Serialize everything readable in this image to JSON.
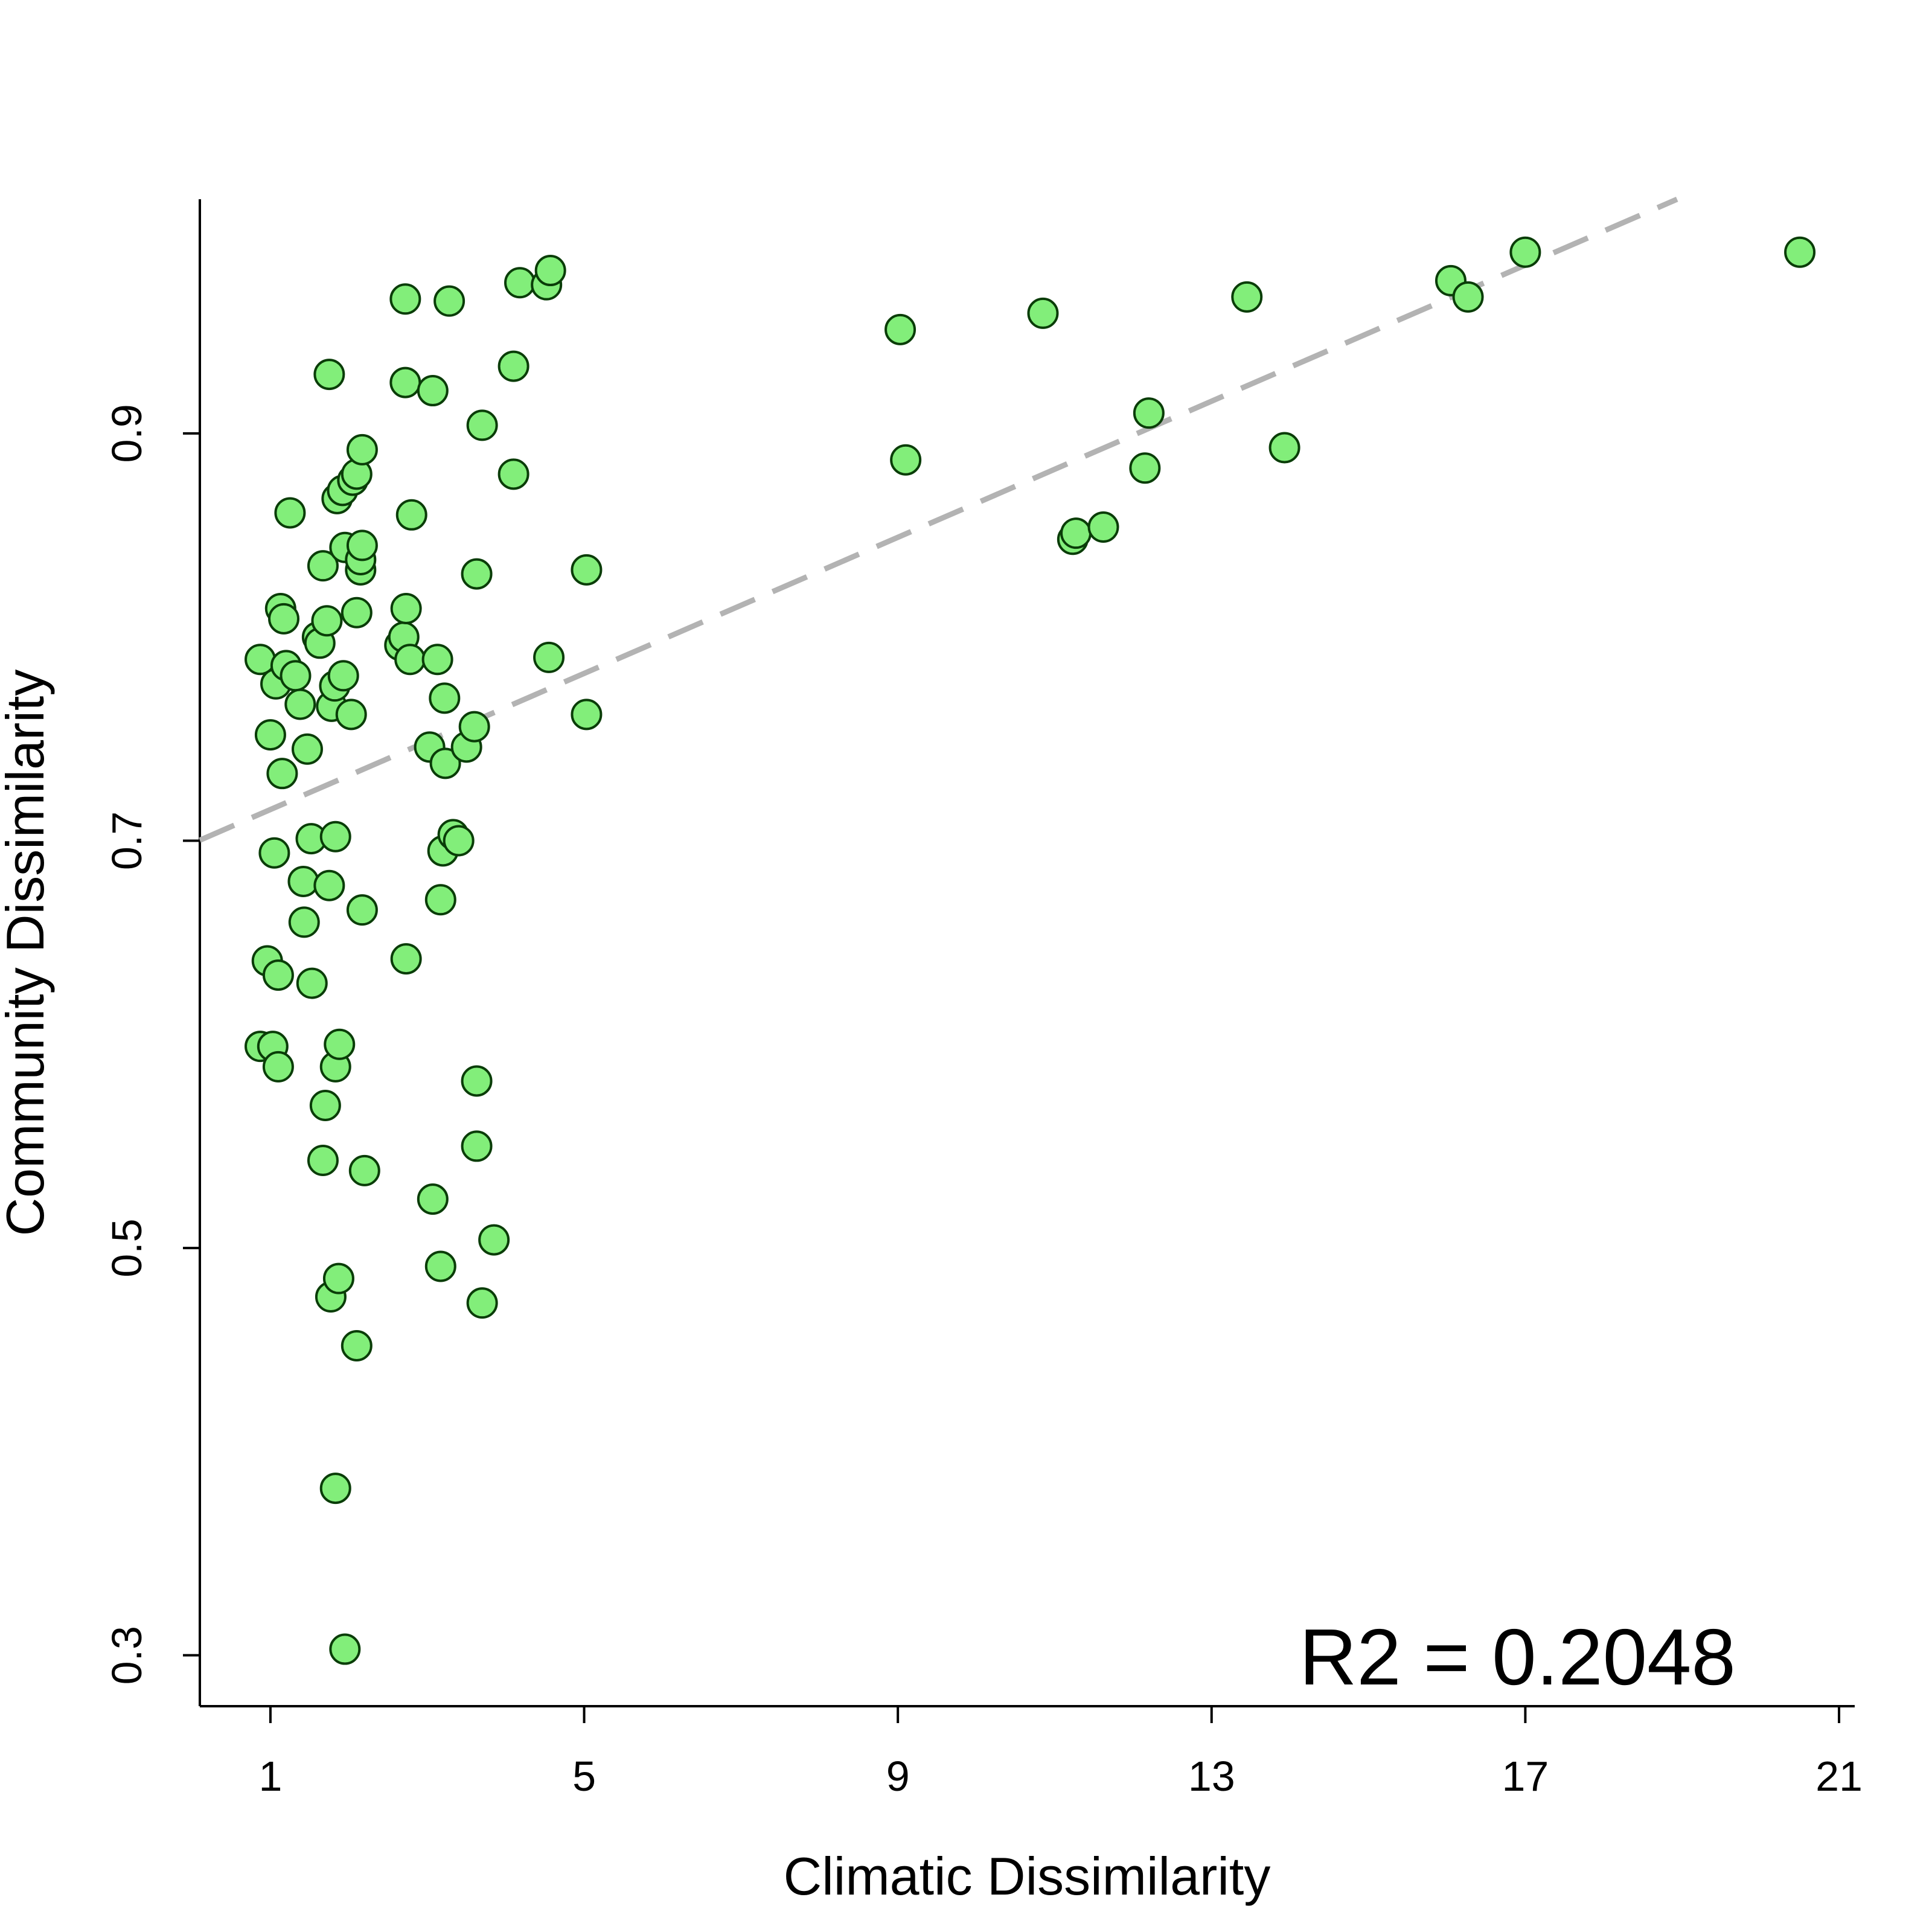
{
  "chart_data": {
    "type": "scatter",
    "title": "",
    "xlabel": "Climatic Dissimilarity",
    "ylabel": "Community Dissimilarity",
    "xlim": [
      0.1,
      21.2
    ],
    "ylim": [
      0.275,
      1.015
    ],
    "xticks": [
      1,
      5,
      9,
      13,
      17,
      21
    ],
    "yticks": [
      0.3,
      0.5,
      0.7,
      0.9
    ],
    "xtick_labels": [
      "1",
      "5",
      "9",
      "13",
      "17",
      "21"
    ],
    "ytick_labels": [
      "0.3",
      "0.5",
      "0.7",
      "0.9"
    ],
    "grid": false,
    "legend": "none",
    "annotation": "R2 = 0.2048",
    "marker_fill": "#82ee7a",
    "marker_edge": "#0a3d08",
    "fit_line_color": "#b3b3b3",
    "fit_line": {
      "intercept": 0.6986,
      "slope": 0.01671,
      "style": "dashed"
    },
    "points": [
      {
        "x": 0.87,
        "y": 0.789
      },
      {
        "x": 0.87,
        "y": 0.599
      },
      {
        "x": 0.96,
        "y": 0.641
      },
      {
        "x": 1.0,
        "y": 0.752
      },
      {
        "x": 1.03,
        "y": 0.599
      },
      {
        "x": 1.05,
        "y": 0.694
      },
      {
        "x": 1.07,
        "y": 0.777
      },
      {
        "x": 1.1,
        "y": 0.634
      },
      {
        "x": 1.1,
        "y": 0.589
      },
      {
        "x": 1.13,
        "y": 0.814
      },
      {
        "x": 1.15,
        "y": 0.733
      },
      {
        "x": 1.17,
        "y": 0.809
      },
      {
        "x": 1.2,
        "y": 0.786
      },
      {
        "x": 1.25,
        "y": 0.861
      },
      {
        "x": 1.32,
        "y": 0.781
      },
      {
        "x": 1.38,
        "y": 0.767
      },
      {
        "x": 1.42,
        "y": 0.68
      },
      {
        "x": 1.43,
        "y": 0.66
      },
      {
        "x": 1.47,
        "y": 0.745
      },
      {
        "x": 1.52,
        "y": 0.701
      },
      {
        "x": 1.53,
        "y": 0.63
      },
      {
        "x": 1.6,
        "y": 0.8
      },
      {
        "x": 1.63,
        "y": 0.797
      },
      {
        "x": 1.67,
        "y": 0.835
      },
      {
        "x": 1.67,
        "y": 0.543
      },
      {
        "x": 1.7,
        "y": 0.57
      },
      {
        "x": 1.72,
        "y": 0.808
      },
      {
        "x": 1.75,
        "y": 0.929
      },
      {
        "x": 1.75,
        "y": 0.678
      },
      {
        "x": 1.77,
        "y": 0.476
      },
      {
        "x": 1.78,
        "y": 0.766
      },
      {
        "x": 1.82,
        "y": 0.776
      },
      {
        "x": 1.83,
        "y": 0.589
      },
      {
        "x": 1.83,
        "y": 0.702
      },
      {
        "x": 1.83,
        "y": 0.382
      },
      {
        "x": 1.85,
        "y": 0.868
      },
      {
        "x": 1.87,
        "y": 0.485
      },
      {
        "x": 1.88,
        "y": 0.6
      },
      {
        "x": 1.92,
        "y": 0.872
      },
      {
        "x": 1.93,
        "y": 0.781
      },
      {
        "x": 1.95,
        "y": 0.844
      },
      {
        "x": 1.95,
        "y": 0.303
      },
      {
        "x": 2.03,
        "y": 0.762
      },
      {
        "x": 2.05,
        "y": 0.877
      },
      {
        "x": 2.1,
        "y": 0.88
      },
      {
        "x": 2.1,
        "y": 0.812
      },
      {
        "x": 2.1,
        "y": 0.452
      },
      {
        "x": 2.15,
        "y": 0.833
      },
      {
        "x": 2.15,
        "y": 0.838
      },
      {
        "x": 2.17,
        "y": 0.892
      },
      {
        "x": 2.17,
        "y": 0.845
      },
      {
        "x": 2.17,
        "y": 0.666
      },
      {
        "x": 2.2,
        "y": 0.538
      },
      {
        "x": 2.65,
        "y": 0.796
      },
      {
        "x": 2.7,
        "y": 0.8
      },
      {
        "x": 2.72,
        "y": 0.925
      },
      {
        "x": 2.72,
        "y": 0.966
      },
      {
        "x": 2.73,
        "y": 0.814
      },
      {
        "x": 2.73,
        "y": 0.642
      },
      {
        "x": 2.78,
        "y": 0.789
      },
      {
        "x": 2.8,
        "y": 0.86
      },
      {
        "x": 3.03,
        "y": 0.746
      },
      {
        "x": 3.07,
        "y": 0.921
      },
      {
        "x": 3.07,
        "y": 0.524
      },
      {
        "x": 3.13,
        "y": 0.789
      },
      {
        "x": 3.17,
        "y": 0.671
      },
      {
        "x": 3.17,
        "y": 0.491
      },
      {
        "x": 3.2,
        "y": 0.695
      },
      {
        "x": 3.22,
        "y": 0.77
      },
      {
        "x": 3.23,
        "y": 0.738
      },
      {
        "x": 3.28,
        "y": 0.965
      },
      {
        "x": 3.33,
        "y": 0.703
      },
      {
        "x": 3.4,
        "y": 0.7
      },
      {
        "x": 3.5,
        "y": 0.746
      },
      {
        "x": 3.6,
        "y": 0.756
      },
      {
        "x": 3.63,
        "y": 0.831
      },
      {
        "x": 3.63,
        "y": 0.582
      },
      {
        "x": 3.63,
        "y": 0.55
      },
      {
        "x": 3.7,
        "y": 0.904
      },
      {
        "x": 3.7,
        "y": 0.473
      },
      {
        "x": 3.85,
        "y": 0.504
      },
      {
        "x": 4.1,
        "y": 0.933
      },
      {
        "x": 4.1,
        "y": 0.88
      },
      {
        "x": 4.18,
        "y": 0.974
      },
      {
        "x": 4.52,
        "y": 0.973
      },
      {
        "x": 4.55,
        "y": 0.79
      },
      {
        "x": 4.57,
        "y": 0.98
      },
      {
        "x": 5.03,
        "y": 0.833
      },
      {
        "x": 5.03,
        "y": 0.762
      },
      {
        "x": 9.03,
        "y": 0.951
      },
      {
        "x": 9.1,
        "y": 0.887
      },
      {
        "x": 10.85,
        "y": 0.959
      },
      {
        "x": 11.23,
        "y": 0.848
      },
      {
        "x": 11.27,
        "y": 0.851
      },
      {
        "x": 11.62,
        "y": 0.854
      },
      {
        "x": 12.15,
        "y": 0.883
      },
      {
        "x": 12.2,
        "y": 0.91
      },
      {
        "x": 13.45,
        "y": 0.967
      },
      {
        "x": 13.93,
        "y": 0.893
      },
      {
        "x": 16.05,
        "y": 0.975
      },
      {
        "x": 16.27,
        "y": 0.967
      },
      {
        "x": 17.0,
        "y": 0.989
      },
      {
        "x": 20.5,
        "y": 0.989
      }
    ]
  }
}
